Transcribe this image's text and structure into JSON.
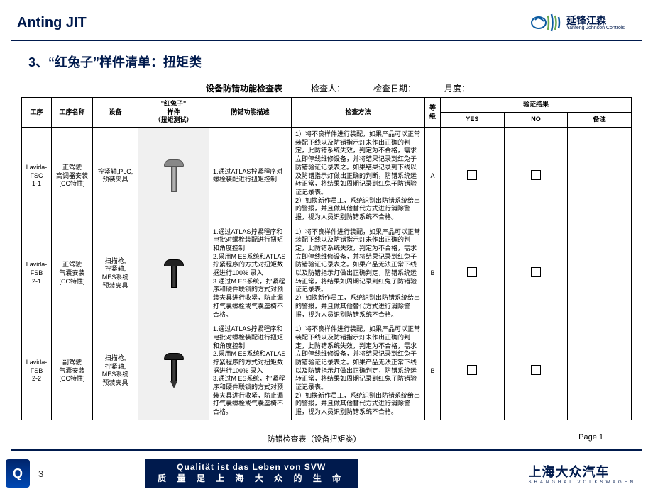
{
  "header": {
    "title": "Anting JIT",
    "brand_cn": "延锋江森",
    "brand_en": "Yanfeng Johnson Controls"
  },
  "subtitle": "3、“红兔子”样件清单：扭矩类",
  "sheet": {
    "title": "设备防错功能检查表",
    "inspector_label": "检查人：",
    "date_label": "检查日期：",
    "freq_label": "月度："
  },
  "cols": {
    "gx": "工序",
    "name": "工序名称",
    "eq": "设备",
    "sample": "\"红兔子\"\n样件\n（扭矩测试）",
    "desc": "防错功能描述",
    "method": "检查方法",
    "lvl": "等级",
    "yes": "YES",
    "no": "NO",
    "note": "备注",
    "result": "验证结果"
  },
  "rows": [
    {
      "gx": "Lavida-FSC\n1-1",
      "name": "正驾驶\n高调器安装\n[CC特性]",
      "eq": "拧紧轴,PLC,预装夹具",
      "desc": "1.通过ATLAS拧紧程序对螺栓装配进行扭矩控制",
      "method": "1）将不良样件进行装配，如果产品可以正常装配下线以及防错指示灯未作出正确的判定，此防错系统失效，判定为不合格，需求立即停线维修设备，并将结果记录到红兔子防错验证记录表之。如果结果记录到下线以及防错指示灯做出正确的判断，防错系统运转正常，将结果如周期记录到红兔子防错验证记录表。\n2）如换新作员工，系统识别出防错系统给出的警报，并且做其他替代方式进行消除警报，视为人员识别防错系统不合格。",
      "lvl": "A"
    },
    {
      "gx": "Lavida-FSB\n2-1",
      "name": "正驾驶\n气囊安装\n[CC特性]",
      "eq": "扫描枪,\n拧紧轴,\nMES系统\n预装夹具",
      "desc": "1.通过ATLAS拧紧程序和电批对螺栓装配进行扭矩和角度控制\n2.采用M ES系统和ATLAS拧紧程序的方式对扭矩数据进行100% 录入\n3.通过M ES系统，拧紧程序和硬件联锁的方式对预装夹具进行收紧，防止漏打气囊螺栓或气囊座椅不合格。",
      "method": "1）将不良样件进行装配，如果产品可以正常装配下线以及防错指示灯未作出正确的判定，此防错系统失效，判定为不合格，需求立即停线维修设备，并将结果记录到红兔子防错验证记录表之。如果产品无法正常下线以及防错指示灯做出正确判定，防错系统运转正常，将结果如周期记录到红兔子防错验证记录表。\n2）如换新作员工，系统识别出防错系统给出的警报，并且做其他替代方式进行消除警报，视为人员识别防错系统不合格。",
      "lvl": "B"
    },
    {
      "gx": "Lavida-FSB\n2-2",
      "name": "副驾驶\n气囊安装\n[CC特性]",
      "eq": "扫描枪,\n拧紧轴,\nMES系统\n预装夹具",
      "desc": "1.通过ATLAS拧紧程序和电批对螺栓装配进行扭矩和角度控制\n2.采用M ES系统和ATLAS拧紧程序的方式对扭矩数据进行100% 录入\n3.通过M ES系统，拧紧程序和硬件联锁的方式对预装夹具进行收紧，防止漏打气囊螺栓或气囊座椅不合格。",
      "method": "1）将不良样件进行装配，如果产品可以正常装配下线以及防错指示灯未作出正确的判定，此防错系统失效，判定为不合格，需求立即停线维修设备，并将结果记录到红兔子防错验证记录表之。如果产品无法正常下线以及防错指示灯做出正确判定，防错系统运转正常，将结果如周期记录到红兔子防错验证记录表。\n2）如换新作员工，系统识别出防错系统给出的警报，并且做其他替代方式进行消除警报，视为人员识别防错系统不合格。",
      "lvl": "B"
    }
  ],
  "sheet_foot": {
    "caption": "防错检查表（设备扭矩类）",
    "page": "Page 1"
  },
  "footer": {
    "page_num": "3",
    "quality_de": "Qualität ist das Leben von SVW",
    "quality_cn": "质 量 是 上 海 大 众 的 生 命",
    "svw": "上海大众汽车",
    "svw_en": "SHANGHAI VOLKSWAGEN"
  }
}
